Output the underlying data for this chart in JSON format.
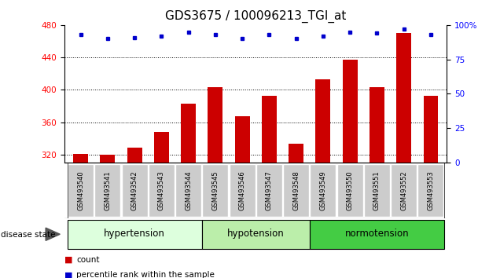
{
  "title": "GDS3675 / 100096213_TGI_at",
  "samples": [
    "GSM493540",
    "GSM493541",
    "GSM493542",
    "GSM493543",
    "GSM493544",
    "GSM493545",
    "GSM493546",
    "GSM493547",
    "GSM493548",
    "GSM493549",
    "GSM493550",
    "GSM493551",
    "GSM493552",
    "GSM493553"
  ],
  "counts": [
    321,
    320,
    329,
    348,
    383,
    403,
    367,
    393,
    333,
    413,
    437,
    403,
    470,
    393
  ],
  "percentiles": [
    93,
    90,
    91,
    92,
    95,
    93,
    90,
    93,
    90,
    92,
    95,
    94,
    97,
    93
  ],
  "groups": [
    {
      "label": "hypertension",
      "start": 0,
      "end": 5,
      "color": "#ddffdd"
    },
    {
      "label": "hypotension",
      "start": 5,
      "end": 9,
      "color": "#bbeeaa"
    },
    {
      "label": "normotension",
      "start": 9,
      "end": 14,
      "color": "#44cc44"
    }
  ],
  "ylim_left": [
    310,
    480
  ],
  "yticks_left": [
    320,
    360,
    400,
    440,
    480
  ],
  "ylim_right": [
    0,
    100
  ],
  "yticks_right": [
    0,
    25,
    50,
    75,
    100
  ],
  "bar_color": "#cc0000",
  "dot_color": "#0000cc",
  "bar_width": 0.55,
  "background_color": "#ffffff",
  "plot_bg_color": "#ffffff",
  "title_fontsize": 11,
  "tick_fontsize": 7.5,
  "label_fontsize": 8
}
